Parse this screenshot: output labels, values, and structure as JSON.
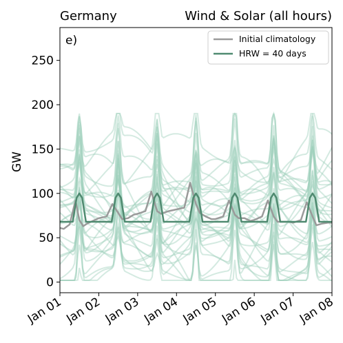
{
  "chart_data": {
    "type": "line",
    "title_left": "Germany",
    "title_right": "Wind & Solar (all hours)",
    "panel_label": "e)",
    "ylabel": "GW",
    "xlabel": "",
    "xlim": [
      0,
      7
    ],
    "ylim": [
      -12,
      287
    ],
    "yticks": [
      0,
      50,
      100,
      150,
      200,
      250
    ],
    "xtick_labels": [
      "Jan 01",
      "Jan 02",
      "Jan 03",
      "Jan 04",
      "Jan 05",
      "Jan 06",
      "Jan 07",
      "Jan 08"
    ],
    "grid": false,
    "legend": {
      "placement": "top-right"
    },
    "ensemble_color": "#9fd1bd",
    "series": [
      {
        "name": "Initial climatology",
        "color": "#9a9a9a",
        "x": [
          0,
          0.1,
          0.25,
          0.4,
          0.5,
          0.6,
          0.7,
          0.9,
          1.0,
          1.2,
          1.35,
          1.5,
          1.6,
          1.75,
          1.9,
          2.0,
          2.2,
          2.35,
          2.5,
          2.6,
          2.8,
          3.0,
          3.2,
          3.35,
          3.5,
          3.6,
          3.75,
          3.9,
          4.0,
          4.2,
          4.35,
          4.5,
          4.6,
          4.75,
          4.9,
          5.0,
          5.2,
          5.35,
          5.5,
          5.6,
          5.75,
          5.9,
          6.0,
          6.2,
          6.35,
          6.5,
          6.6,
          6.75,
          6.9,
          7.0
        ],
        "y": [
          61,
          60,
          65,
          92,
          70,
          63,
          66,
          70,
          72,
          74,
          88,
          78,
          71,
          72,
          76,
          77,
          80,
          102,
          80,
          77,
          80,
          82,
          84,
          112,
          88,
          78,
          74,
          71,
          71,
          74,
          92,
          76,
          72,
          72,
          69,
          70,
          74,
          92,
          74,
          68,
          68,
          68,
          67,
          70,
          90,
          74,
          64,
          66,
          67,
          67
        ]
      },
      {
        "name": "HRW = 40 days",
        "color": "#4f8a70",
        "x": [
          0,
          0.33,
          0.43,
          0.5,
          0.57,
          0.67,
          1.0,
          1.33,
          1.43,
          1.5,
          1.57,
          1.67,
          2.0,
          2.33,
          2.43,
          2.5,
          2.57,
          2.67,
          3.0,
          3.33,
          3.43,
          3.5,
          3.57,
          3.67,
          4.0,
          4.33,
          4.43,
          4.5,
          4.57,
          4.67,
          5.0,
          5.33,
          5.43,
          5.5,
          5.57,
          5.67,
          6.0,
          6.33,
          6.43,
          6.5,
          6.57,
          6.67,
          7.0
        ],
        "y": [
          68,
          68,
          95,
          100,
          95,
          68,
          68,
          68,
          95,
          100,
          95,
          68,
          68,
          68,
          95,
          100,
          95,
          68,
          68,
          68,
          95,
          100,
          95,
          68,
          68,
          68,
          95,
          100,
          95,
          68,
          68,
          68,
          95,
          100,
          95,
          68,
          68,
          68,
          95,
          100,
          95,
          68,
          68
        ]
      }
    ]
  }
}
